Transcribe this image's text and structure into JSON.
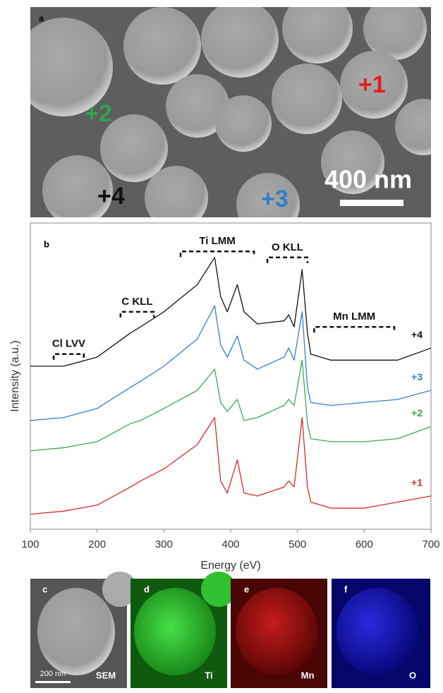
{
  "panel_a": {
    "label": "a",
    "markers": [
      {
        "text": "+1",
        "color": "#e0201e"
      },
      {
        "text": "+2",
        "color": "#2fa34f"
      },
      {
        "text": "+3",
        "color": "#2f7fc4"
      },
      {
        "text": "+4",
        "color": "#111111"
      }
    ],
    "scale_bar": "400 nm"
  },
  "chart_data": {
    "type": "line",
    "label": "b",
    "xlabel": "Energy (eV)",
    "ylabel": "Intensity (a.u.)",
    "x": [
      100,
      150,
      200,
      250,
      265,
      300,
      350,
      376,
      385,
      395,
      410,
      420,
      440,
      480,
      487,
      495,
      507,
      515,
      520,
      550,
      600,
      650,
      700
    ],
    "xlim": [
      100,
      700
    ],
    "xticks": [
      100,
      200,
      300,
      400,
      500,
      600,
      700
    ],
    "ylim": [
      0,
      100
    ],
    "series": [
      {
        "name": "+4",
        "color": "#111111",
        "values": [
          54,
          54,
          57,
          65,
          67,
          72,
          81,
          90,
          77,
          72,
          81,
          72,
          68,
          69,
          71,
          67,
          86,
          65,
          58,
          56,
          56,
          56,
          60
        ]
      },
      {
        "name": "+3",
        "color": "#3a7fc2",
        "values": [
          36,
          37,
          40,
          47,
          49,
          54,
          63,
          74,
          61,
          57,
          64,
          56,
          53,
          57,
          60,
          56,
          72,
          47,
          42,
          41,
          42,
          43,
          46
        ]
      },
      {
        "name": "+2",
        "color": "#3aa85a",
        "values": [
          26,
          27,
          29,
          35,
          36,
          40,
          46,
          53,
          42,
          39,
          43,
          36,
          37,
          41,
          43,
          41,
          56,
          35,
          30,
          29,
          29,
          30,
          34
        ]
      },
      {
        "name": "+1",
        "color": "#d62a2a",
        "values": [
          5,
          6,
          8,
          14,
          16,
          20,
          28,
          37,
          16,
          12,
          23,
          12,
          11,
          14,
          16,
          14,
          37,
          14,
          9,
          7,
          7,
          9,
          11
        ]
      }
    ],
    "annotations": [
      {
        "text": "Cl LVV",
        "range": [
          135,
          180
        ],
        "y": 58
      },
      {
        "text": "C KLL",
        "range": [
          235,
          285
        ],
        "y": 72
      },
      {
        "text": "Ti LMM",
        "range": [
          325,
          435
        ],
        "y": 92
      },
      {
        "text": "O KLL",
        "range": [
          455,
          515
        ],
        "y": 90
      },
      {
        "text": "Mn LMM",
        "range": [
          525,
          645
        ],
        "y": 67
      }
    ]
  },
  "panels": [
    {
      "label": "c",
      "caption": "SEM"
    },
    {
      "label": "d",
      "caption": "Ti"
    },
    {
      "label": "e",
      "caption": "Mn"
    },
    {
      "label": "f",
      "caption": "O"
    }
  ],
  "panel_c_scale_bar": "200 nm"
}
